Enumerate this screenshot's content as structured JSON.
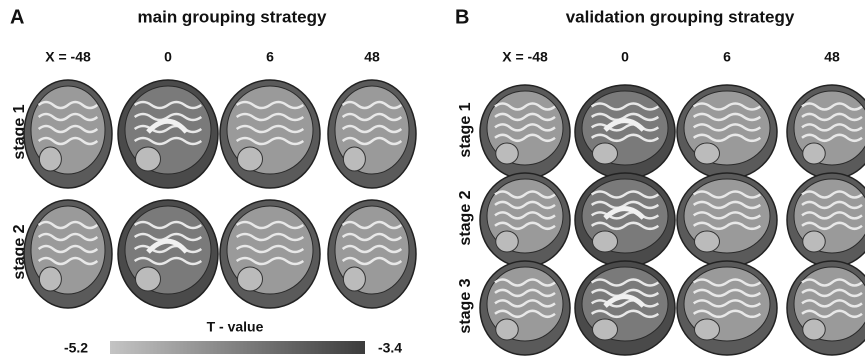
{
  "panels": [
    {
      "label": "A",
      "title": "main grouping strategy",
      "columns": [
        "X = -48",
        "0",
        "6",
        "48"
      ],
      "rows": [
        "stage 1",
        "stage 2"
      ]
    },
    {
      "label": "B",
      "title": "validation grouping strategy",
      "columns": [
        "X = -48",
        "0",
        "6",
        "48"
      ],
      "rows": [
        "stage 1",
        "stage 2",
        "stage 3"
      ]
    }
  ],
  "colorbar": {
    "title": "T - value",
    "min_label": "-5.2",
    "max_label": "-3.4"
  }
}
